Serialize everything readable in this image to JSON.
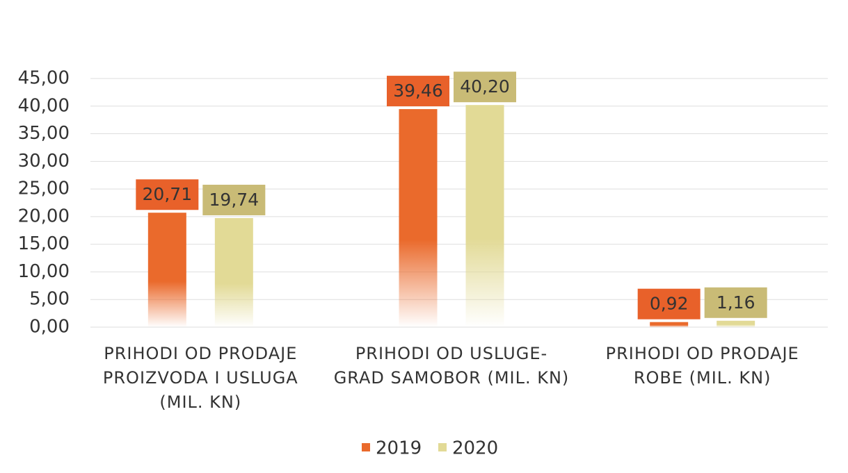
{
  "chart_data": {
    "type": "bar",
    "categories": [
      "PRIHODI OD PRODAJE PROIZVODA I USLUGA (MIL. KN)",
      "PRIHODI OD USLUGE-GRAD SAMOBOR (MIL. KN)",
      "PRIHODI OD PRODAJE ROBE (MIL. KN)"
    ],
    "series": [
      {
        "name": "2019",
        "color": "#ea6a2c",
        "label_color": "#e8612a",
        "values": [
          20.71,
          39.46,
          0.92
        ],
        "value_labels": [
          "20,71",
          "39,46",
          "0,92"
        ]
      },
      {
        "name": "2020",
        "color": "#e2da96",
        "label_color": "#c9bb76",
        "values": [
          19.74,
          40.2,
          1.16
        ],
        "value_labels": [
          "19,74",
          "40,20",
          "1,16"
        ]
      }
    ],
    "ylim": [
      0,
      45
    ],
    "yticks": [
      {
        "value": 0,
        "label": "0,00"
      },
      {
        "value": 5,
        "label": "5,00"
      },
      {
        "value": 10,
        "label": "10,00"
      },
      {
        "value": 15,
        "label": "15,00"
      },
      {
        "value": 20,
        "label": "20,00"
      },
      {
        "value": 25,
        "label": "25,00"
      },
      {
        "value": 30,
        "label": "30,00"
      },
      {
        "value": 35,
        "label": "35,00"
      },
      {
        "value": 40,
        "label": "40,00"
      },
      {
        "value": 45,
        "label": "45,00"
      }
    ],
    "grid": true,
    "legend": "bottom"
  }
}
